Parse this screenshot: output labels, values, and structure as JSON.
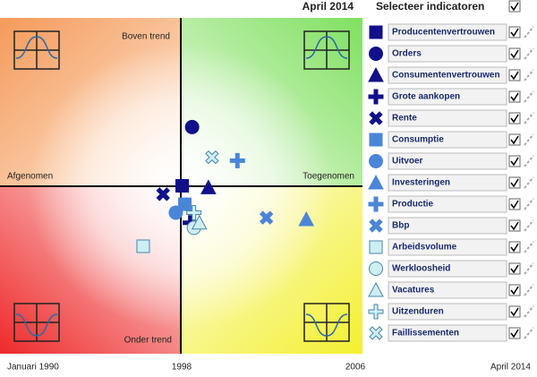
{
  "chart_data": {
    "type": "scatter",
    "title": "April 2014",
    "panel_title": "Selecteer indicatoren",
    "quadrant_labels": {
      "top_left": "Boven trend",
      "right": "Toegenomen",
      "left": "Afgenomen",
      "bottom_left": "Onder trend"
    },
    "xlim": [
      -1,
      1
    ],
    "ylim": [
      -1,
      1
    ],
    "timeline": [
      "Januari 1990",
      "1998",
      "2006",
      "April 2014"
    ],
    "series": [
      {
        "name": "Producentenvertrouwen",
        "marker": "square",
        "color": "#10108a",
        "x": [
          0.005
        ],
        "y": [
          0.0
        ]
      },
      {
        "name": "Orders",
        "marker": "circle",
        "color": "#10108a",
        "x": [
          0.06
        ],
        "y": [
          0.35
        ]
      },
      {
        "name": "Consumentenvertrouwen",
        "marker": "triangle",
        "color": "#10108a",
        "x": [
          0.15
        ],
        "y": [
          -0.01
        ]
      },
      {
        "name": "Grote aankopen",
        "marker": "plus",
        "color": "#10108a",
        "x": [
          0.05
        ],
        "y": [
          -0.22
        ]
      },
      {
        "name": "Rente",
        "marker": "cross",
        "color": "#10108a",
        "x": [
          -0.1
        ],
        "y": [
          -0.05
        ]
      },
      {
        "name": "Consumptie",
        "marker": "square",
        "color": "#4a86d8",
        "x": [
          0.02
        ],
        "y": [
          -0.11
        ]
      },
      {
        "name": "Uitvoer",
        "marker": "circle",
        "color": "#4a86d8",
        "x": [
          -0.03
        ],
        "y": [
          -0.16
        ]
      },
      {
        "name": "Investeringen",
        "marker": "triangle",
        "color": "#4a86d8",
        "x": [
          0.69
        ],
        "y": [
          -0.2
        ]
      },
      {
        "name": "Productie",
        "marker": "plus",
        "color": "#4a86d8",
        "x": [
          0.31
        ],
        "y": [
          0.15
        ]
      },
      {
        "name": "Bbp",
        "marker": "cross",
        "color": "#4a86d8",
        "x": [
          0.47
        ],
        "y": [
          -0.19
        ]
      },
      {
        "name": "Arbeidsvolume",
        "marker": "square",
        "color": "#cdeef3",
        "x": [
          -0.21
        ],
        "y": [
          -0.36
        ]
      },
      {
        "name": "Werkloosheid",
        "marker": "circle",
        "color": "#cdeef3",
        "x": [
          0.07
        ],
        "y": [
          -0.25
        ]
      },
      {
        "name": "Vacatures",
        "marker": "triangle",
        "color": "#cdeef3",
        "x": [
          0.1
        ],
        "y": [
          -0.22
        ]
      },
      {
        "name": "Uitzenduren",
        "marker": "plus",
        "color": "#cdeef3",
        "x": [
          0.07
        ],
        "y": [
          -0.16
        ]
      },
      {
        "name": "Faillissementen",
        "marker": "cross",
        "color": "#cdeef3",
        "x": [
          0.17
        ],
        "y": [
          0.17
        ]
      }
    ]
  }
}
